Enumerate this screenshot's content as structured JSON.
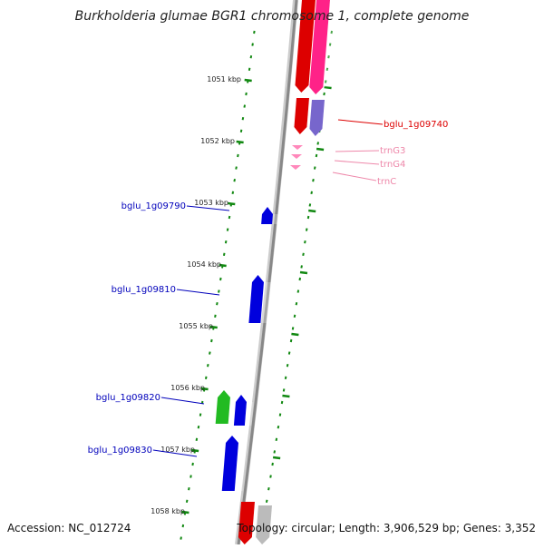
{
  "title": "Burkholderia glumae BGR1 chromosome 1, complete genome",
  "accession": "Accession: NC_012724",
  "topology": "Topology: circular; Length: 3,906,529 bp; Genes: 3,352",
  "colors": {
    "forward_strand": "#0000dd",
    "reverse_strand": "#dd0000",
    "trna": "#ff88bb",
    "rrna_pink": "#ff2288",
    "purple": "#7766cc",
    "green": "#22bb22",
    "grey": "#bbbbbb",
    "ruler_tick": "#118811",
    "backbone": "#888888"
  },
  "ruler": {
    "ticks": [
      {
        "label": "1051 kbp"
      },
      {
        "label": "1052 kbp"
      },
      {
        "label": "1053 kbp"
      },
      {
        "label": "1054 kbp"
      },
      {
        "label": "1055 kbp"
      },
      {
        "label": "1056 kbp"
      },
      {
        "label": "1057 kbp"
      },
      {
        "label": "1058 kbp"
      }
    ]
  },
  "features": [
    {
      "strand": "reverse",
      "color": "#dd0000"
    },
    {
      "strand": "reverse",
      "color": "#ff2288"
    },
    {
      "strand": "reverse",
      "color": "#dd0000"
    },
    {
      "strand": "reverse",
      "color": "#7766cc"
    },
    {
      "strand": "reverse",
      "color": "#ff88bb"
    },
    {
      "strand": "forward",
      "color": "#0000dd"
    },
    {
      "strand": "forward",
      "color": "#0000dd"
    },
    {
      "strand": "forward",
      "color": "#22bb22"
    },
    {
      "strand": "forward",
      "color": "#0000dd"
    },
    {
      "strand": "forward",
      "color": "#0000dd"
    },
    {
      "strand": "reverse",
      "color": "#dd0000"
    },
    {
      "strand": "reverse",
      "color": "#bbbbbb"
    }
  ],
  "gene_labels": [
    {
      "text": "bglu_1g09740",
      "color": "#dd0000"
    },
    {
      "text": "trnG3",
      "color": "#ee88aa"
    },
    {
      "text": "trnG4",
      "color": "#ee88aa"
    },
    {
      "text": "trnC",
      "color": "#ee88aa"
    },
    {
      "text": "bglu_1g09790",
      "color": "#0000bb"
    },
    {
      "text": "bglu_1g09810",
      "color": "#0000bb"
    },
    {
      "text": "bglu_1g09820",
      "color": "#0000bb"
    },
    {
      "text": "bglu_1g09830",
      "color": "#0000bb"
    }
  ]
}
